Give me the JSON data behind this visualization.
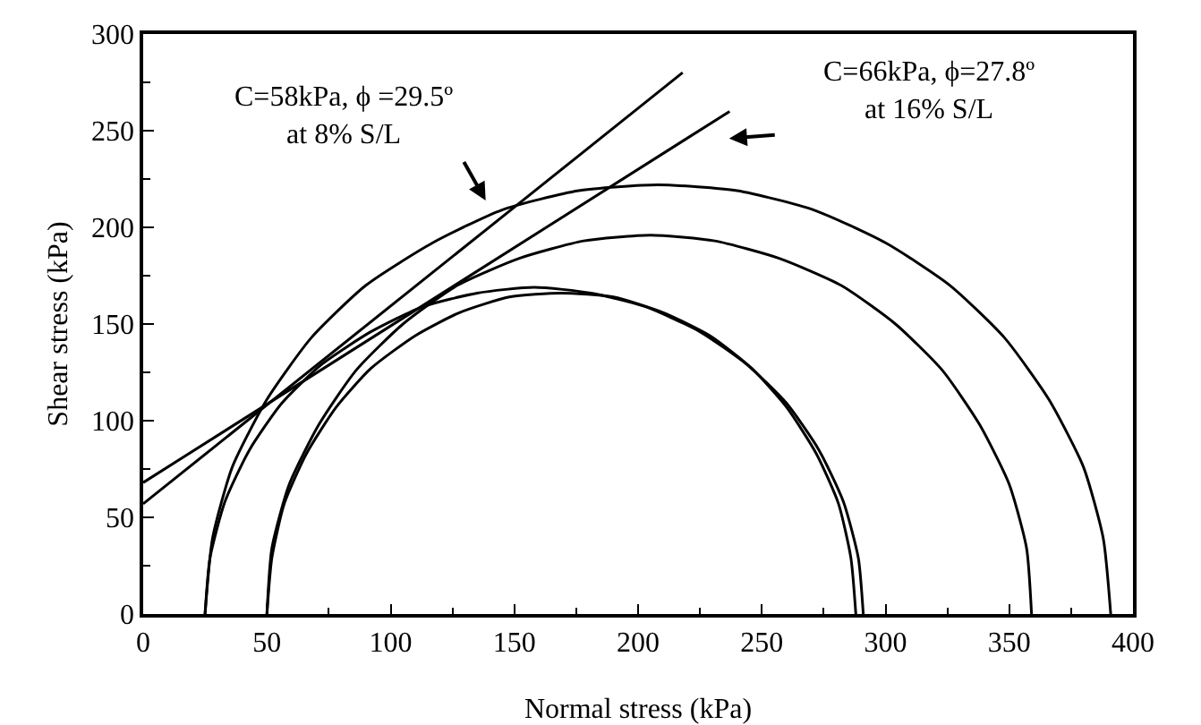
{
  "chart_data": {
    "type": "line",
    "xlabel": "Normal stress (kPa)",
    "ylabel": "Shear stress (kPa)",
    "xlim": [
      0,
      400
    ],
    "xticks": [
      0,
      50,
      100,
      150,
      200,
      250,
      300,
      350,
      400
    ],
    "ylim": [
      0,
      300
    ],
    "yticks": [
      0,
      50,
      100,
      150,
      200,
      250,
      300
    ],
    "grid": false,
    "marker": "none",
    "line_style": "solid",
    "series": [
      {
        "color": "#000000",
        "x": [
          25,
          27,
          33,
          43,
          56,
          72,
          92,
          113,
          135,
          158,
          181,
          203,
          225,
          244,
          260,
          273,
          283,
          289,
          291
        ],
        "values": [
          0,
          29,
          58,
          85,
          109,
          129,
          146,
          159,
          166,
          169,
          166,
          159,
          146,
          129,
          109,
          85,
          58,
          29,
          0
        ]
      },
      {
        "color": "#000000",
        "x": [
          50,
          52,
          57,
          66,
          78,
          92,
          110,
          128,
          148,
          169,
          190,
          210,
          229,
          246,
          260,
          272,
          281,
          286,
          288
        ],
        "values": [
          0,
          29,
          57,
          83,
          107,
          127,
          144,
          156,
          164,
          166,
          164,
          156,
          144,
          127,
          107,
          83,
          57,
          29,
          0
        ]
      },
      {
        "color": "#000000",
        "x": [
          50,
          52,
          59,
          71,
          86,
          105,
          127,
          152,
          178,
          205,
          231,
          257,
          282,
          304,
          323,
          338,
          350,
          357,
          359
        ],
        "values": [
          0,
          34,
          67,
          98,
          126,
          150,
          170,
          184,
          193,
          196,
          193,
          184,
          170,
          150,
          126,
          98,
          67,
          34,
          0
        ]
      },
      {
        "color": "#000000",
        "x": [
          25,
          28,
          36,
          50,
          68,
          90,
          117,
          145,
          176,
          208,
          240,
          271,
          300,
          326,
          348,
          366,
          380,
          388,
          391
        ],
        "values": [
          0,
          39,
          76,
          111,
          143,
          170,
          192,
          209,
          219,
          222,
          219,
          209,
          192,
          170,
          143,
          111,
          76,
          39,
          0
        ]
      },
      {
        "color": "#000000",
        "x": [
          0,
          218
        ],
        "values": [
          57,
          280
        ]
      },
      {
        "color": "#000000",
        "x": [
          0,
          237
        ],
        "values": [
          68,
          260
        ]
      }
    ],
    "annotations": [
      "C=58kPa, ϕ =29.5º\nat 8% S/L",
      "C=66kPa, ϕ=27.8º\nat 16% S/L"
    ]
  }
}
